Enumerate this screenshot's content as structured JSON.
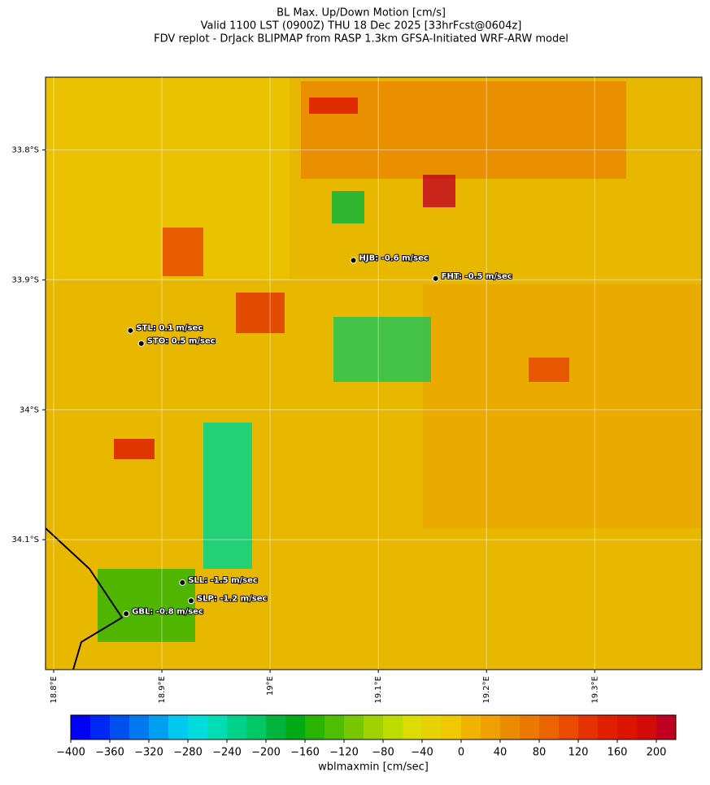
{
  "chart_data": {
    "type": "map",
    "title": "BL Max. Up/Down Motion [cm/s]",
    "subtitle": [
      "Valid 1100 LST (0900Z) THU 18 Dec 2025 [33hrFcst@0604z]",
      "FDV replot - DrJack BLIPMAP from RASP 1.3km GFSA-Initiated WRF-ARW model"
    ],
    "xlim": [
      18.7925,
      19.399
    ],
    "ylim": [
      -34.2,
      -33.744
    ],
    "xticks": [
      {
        "value": 18.8,
        "label": "18.8°E"
      },
      {
        "value": 18.9,
        "label": "18.9°E"
      },
      {
        "value": 19.0,
        "label": "19°E"
      },
      {
        "value": 19.1,
        "label": "19.1°E"
      },
      {
        "value": 19.2,
        "label": "19.2°E"
      },
      {
        "value": 19.3,
        "label": "19.3°E"
      }
    ],
    "yticks": [
      {
        "value": -33.8,
        "label": "33.8°S"
      },
      {
        "value": -33.9,
        "label": "33.9°S"
      },
      {
        "value": -34.0,
        "label": "34°S"
      },
      {
        "value": -34.1,
        "label": "34.1°S"
      }
    ],
    "grid": true,
    "stations": [
      {
        "label": "HJB: -0.6 m/sec",
        "lon": 19.077,
        "lat": -33.885
      },
      {
        "label": "FHT: -0.5 m/sec",
        "lon": 19.153,
        "lat": -33.899
      },
      {
        "label": "STL: 0.1 m/sec",
        "lon": 18.871,
        "lat": -33.939
      },
      {
        "label": "STO: 0.5 m/sec",
        "lon": 18.881,
        "lat": -33.949
      },
      {
        "label": "SLL: -1.5 m/sec",
        "lon": 18.919,
        "lat": -34.133
      },
      {
        "label": "SLP: -1.2 m/sec",
        "lon": 18.927,
        "lat": -34.147
      },
      {
        "label": "GBL: -0.8 m/sec",
        "lon": 18.867,
        "lat": -34.157
      }
    ],
    "colorbar": {
      "label": "wblmaxmin [cm/sec]",
      "lim": [
        -400,
        220
      ],
      "ticks": [
        {
          "value": -400,
          "label": "−400"
        },
        {
          "value": -360,
          "label": "−360"
        },
        {
          "value": -320,
          "label": "−320"
        },
        {
          "value": -280,
          "label": "−280"
        },
        {
          "value": -240,
          "label": "−240"
        },
        {
          "value": -200,
          "label": "−200"
        },
        {
          "value": -160,
          "label": "−160"
        },
        {
          "value": -120,
          "label": "−120"
        },
        {
          "value": -80,
          "label": "−80"
        },
        {
          "value": -40,
          "label": "−40"
        },
        0,
        40,
        80,
        120,
        160,
        200
      ],
      "colors": [
        "#0000f5",
        "#0028f5",
        "#0050f0",
        "#0078f0",
        "#00a0f0",
        "#00c8f0",
        "#00dcdc",
        "#00dcb4",
        "#00d28c",
        "#00c864",
        "#00b43c",
        "#00aa14",
        "#28b400",
        "#50be00",
        "#78c800",
        "#a0d200",
        "#bedc00",
        "#dcdc00",
        "#e6d200",
        "#f0c800",
        "#f0b400",
        "#f0a000",
        "#eb8c00",
        "#eb7800",
        "#eb6400",
        "#eb4b00",
        "#e63200",
        "#e11e00",
        "#dc1400",
        "#d20a0a",
        "#c00020"
      ]
    }
  }
}
